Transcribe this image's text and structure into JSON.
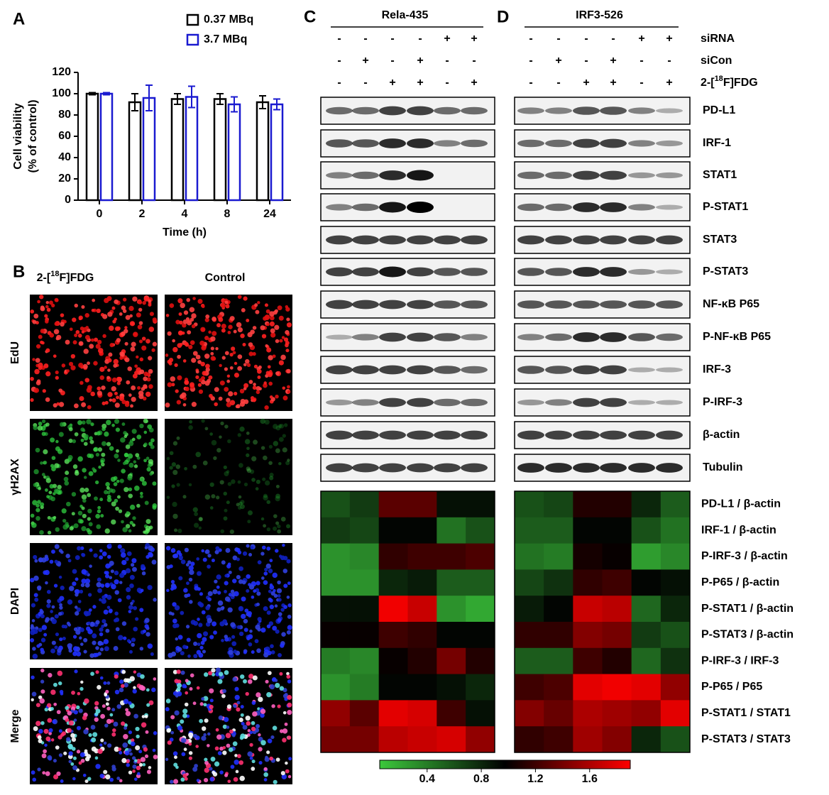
{
  "chart_data": [
    {
      "type": "bar",
      "panel": "A",
      "categories": [
        "0",
        "2",
        "4",
        "8",
        "24"
      ],
      "series": [
        {
          "name": "0.37 MBq",
          "color": "#000000",
          "values": [
            100,
            92,
            95,
            95,
            92
          ],
          "errors": [
            1,
            8,
            5,
            5,
            6
          ]
        },
        {
          "name": "3.7 MBq",
          "color": "#1a1ad0",
          "values": [
            100,
            96,
            97,
            90,
            90
          ],
          "errors": [
            1,
            12,
            10,
            7,
            5
          ]
        }
      ],
      "ylabel": [
        "Cell viability",
        "(% of control)"
      ],
      "xlabel": "Time (h)",
      "ylim": [
        0,
        120
      ],
      "yticks": [
        0,
        20,
        40,
        60,
        80,
        100,
        120
      ]
    },
    {
      "type": "heatmap",
      "values": [
        [
          0.6,
          0.7,
          1.3,
          1.3,
          0.9,
          0.9
        ],
        [
          0.7,
          0.65,
          0.95,
          0.95,
          0.45,
          0.6
        ],
        [
          0.3,
          0.35,
          1.15,
          1.2,
          1.2,
          1.25
        ],
        [
          0.3,
          0.3,
          0.8,
          0.85,
          0.55,
          0.55
        ],
        [
          0.9,
          0.9,
          1.85,
          1.7,
          0.3,
          0.2
        ],
        [
          1.0,
          1.0,
          1.2,
          1.15,
          0.95,
          0.95
        ],
        [
          0.4,
          0.35,
          1.0,
          1.1,
          1.4,
          1.1
        ],
        [
          0.3,
          0.4,
          0.95,
          0.95,
          0.9,
          0.8
        ],
        [
          1.5,
          1.3,
          1.8,
          1.75,
          1.2,
          0.9
        ],
        [
          1.4,
          1.4,
          1.65,
          1.7,
          1.75,
          1.5
        ]
      ]
    },
    {
      "type": "heatmap",
      "rows": [
        "PD-L1 / β-actin",
        "IRF-1 / β-actin",
        "P-IRF-3 / β-actin",
        "P-P65 / β-actin",
        "P-STAT1 / β-actin",
        "P-STAT3 / β-actin",
        "P-IRF-3 / IRF-3",
        "P-P65 / P65",
        "P-STAT1 / STAT1",
        "P-STAT3 / STAT3"
      ],
      "values": [
        [
          0.6,
          0.65,
          1.1,
          1.1,
          0.8,
          0.55
        ],
        [
          0.55,
          0.55,
          0.95,
          0.95,
          0.6,
          0.45
        ],
        [
          0.45,
          0.4,
          1.05,
          1.0,
          0.25,
          0.35
        ],
        [
          0.65,
          0.75,
          1.15,
          1.2,
          0.95,
          0.9
        ],
        [
          0.85,
          0.95,
          1.7,
          1.65,
          0.5,
          0.8
        ],
        [
          1.15,
          1.15,
          1.45,
          1.4,
          0.7,
          0.6
        ],
        [
          0.55,
          0.55,
          1.2,
          1.1,
          0.5,
          0.75
        ],
        [
          1.2,
          1.25,
          1.8,
          1.85,
          1.8,
          1.5
        ],
        [
          1.45,
          1.35,
          1.6,
          1.55,
          1.5,
          1.8
        ],
        [
          1.15,
          1.2,
          1.55,
          1.45,
          0.8,
          0.6
        ]
      ],
      "colorbar": {
        "clim": [
          0.05,
          1.9
        ],
        "ticks": [
          0.4,
          0.8,
          1.2,
          1.6
        ],
        "low": "#3cc83c",
        "mid": "#000000",
        "high": "#ff0000"
      }
    }
  ],
  "panel_b": {
    "letter": "B",
    "columns": [
      {
        "pre": "2-[",
        "sup": "18",
        "post": "F]FDG"
      },
      {
        "text": "Control"
      }
    ],
    "rows": [
      {
        "label": "EdU",
        "color": "#e02020"
      },
      {
        "label": "γH2AX",
        "color": "#20b050"
      },
      {
        "label": "DAPI",
        "color": "#2070c0"
      },
      {
        "label": "Merge",
        "color": "#000000"
      }
    ]
  },
  "panel_c": {
    "letter": "C",
    "title": "Rela-435"
  },
  "panel_d": {
    "letter": "D",
    "title": "IRF3-526"
  },
  "treatments": [
    {
      "name": {
        "text": "siRNA"
      },
      "signs": [
        "-",
        "-",
        "-",
        "-",
        "+",
        "+"
      ]
    },
    {
      "name": {
        "text": "siCon"
      },
      "signs": [
        "-",
        "+",
        "-",
        "+",
        "-",
        "-"
      ]
    },
    {
      "name": {
        "pre": "2-[",
        "sup": "18",
        "post": "F]FDG"
      },
      "signs": [
        "-",
        "-",
        "+",
        "+",
        "-",
        "+"
      ]
    }
  ],
  "proteins": [
    "PD-L1",
    "IRF-1",
    "STAT1",
    "P-STAT1",
    "STAT3",
    "P-STAT3",
    "NF-κB P65",
    "P-NF-κB P65",
    "IRF-3",
    "P-IRF-3",
    "β-actin",
    "Tubulin"
  ]
}
